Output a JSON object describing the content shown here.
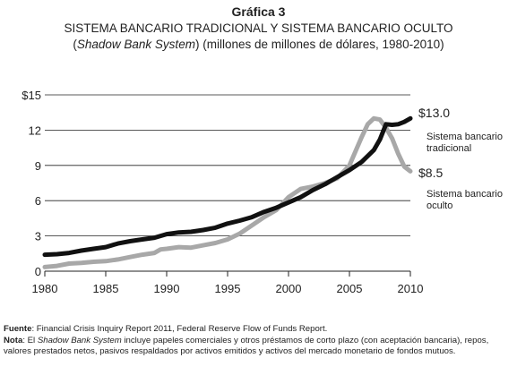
{
  "figure": {
    "label": "Gráfica 3",
    "title_line1": "SISTEMA BANCARIO TRADICIONAL Y SISTEMA BANCARIO OCULTO",
    "title_line2_open": "(",
    "title_line2_italic": "Shadow Bank System",
    "title_line2_rest": ") (millones de millones de dólares, 1980-2010)"
  },
  "chart_data": {
    "type": "line",
    "x_range": [
      1980,
      2010
    ],
    "y_range": [
      0,
      15
    ],
    "grid": "horizontal",
    "x_ticks": [
      "1980",
      "1985",
      "1990",
      "1995",
      "2000",
      "2005",
      "2010"
    ],
    "x_tick_values": [
      1980,
      1985,
      1990,
      1995,
      2000,
      2005,
      2010
    ],
    "y_ticks": [
      "0",
      "3",
      "6",
      "9",
      "12",
      "$15"
    ],
    "y_tick_values": [
      0,
      3,
      6,
      9,
      12,
      15
    ],
    "series": [
      {
        "label_line1": "Sistema bancario",
        "label_line2": "tradicional",
        "end_label": "$13.0",
        "color": "#111111",
        "points": [
          [
            1980,
            1.4
          ],
          [
            1981,
            1.45
          ],
          [
            1982,
            1.55
          ],
          [
            1983,
            1.75
          ],
          [
            1984,
            1.9
          ],
          [
            1985,
            2.05
          ],
          [
            1986,
            2.35
          ],
          [
            1987,
            2.55
          ],
          [
            1988,
            2.7
          ],
          [
            1989,
            2.85
          ],
          [
            1990,
            3.15
          ],
          [
            1991,
            3.3
          ],
          [
            1992,
            3.35
          ],
          [
            1993,
            3.5
          ],
          [
            1994,
            3.7
          ],
          [
            1995,
            4.05
          ],
          [
            1996,
            4.3
          ],
          [
            1997,
            4.6
          ],
          [
            1998,
            5.05
          ],
          [
            1999,
            5.4
          ],
          [
            2000,
            5.85
          ],
          [
            2001,
            6.3
          ],
          [
            2002,
            6.9
          ],
          [
            2003,
            7.4
          ],
          [
            2004,
            8.0
          ],
          [
            2005,
            8.6
          ],
          [
            2006,
            9.3
          ],
          [
            2007,
            10.3
          ],
          [
            2007.5,
            11.2
          ],
          [
            2008,
            12.5
          ],
          [
            2008.5,
            12.45
          ],
          [
            2009,
            12.5
          ],
          [
            2009.5,
            12.7
          ],
          [
            2010,
            13.0
          ]
        ]
      },
      {
        "label_line1": "Sistema bancario",
        "label_line2": "oculto",
        "end_label": "$8.5",
        "color": "#a8a8a8",
        "points": [
          [
            1980,
            0.35
          ],
          [
            1981,
            0.45
          ],
          [
            1982,
            0.65
          ],
          [
            1983,
            0.7
          ],
          [
            1984,
            0.8
          ],
          [
            1985,
            0.85
          ],
          [
            1986,
            1.0
          ],
          [
            1987,
            1.2
          ],
          [
            1988,
            1.4
          ],
          [
            1989,
            1.55
          ],
          [
            1989.5,
            1.85
          ],
          [
            1990,
            1.9
          ],
          [
            1991,
            2.05
          ],
          [
            1992,
            2.0
          ],
          [
            1993,
            2.2
          ],
          [
            1994,
            2.4
          ],
          [
            1995,
            2.7
          ],
          [
            1996,
            3.2
          ],
          [
            1997,
            3.9
          ],
          [
            1998,
            4.6
          ],
          [
            1999,
            5.2
          ],
          [
            2000,
            6.3
          ],
          [
            2001,
            7.0
          ],
          [
            2002,
            7.2
          ],
          [
            2003,
            7.5
          ],
          [
            2004,
            7.9
          ],
          [
            2005,
            9.0
          ],
          [
            2006,
            11.4
          ],
          [
            2006.5,
            12.5
          ],
          [
            2007,
            13.0
          ],
          [
            2007.5,
            12.9
          ],
          [
            2008,
            12.2
          ],
          [
            2008.5,
            11.3
          ],
          [
            2009,
            10.0
          ],
          [
            2009.5,
            8.9
          ],
          [
            2010,
            8.5
          ]
        ]
      }
    ]
  },
  "notes": {
    "source_label": "Fuente",
    "source_text": ": Financial Crisis Inquiry Report 2011, Federal Reserve Flow of Funds Report.",
    "note_label": "Nota",
    "note_text_a": ": El ",
    "note_italic": "Shadow Bank System",
    "note_text_b": " incluye papeles comerciales y otros préstamos de corto plazo (con aceptación bancaria), repos, valores prestados netos, pasivos respaldados por activos emitidos y activos del mercado monetario de fondos mutuos."
  }
}
